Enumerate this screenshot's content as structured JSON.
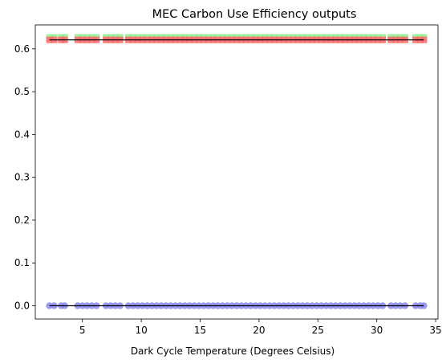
{
  "chart_data": {
    "type": "scatter",
    "title": "MEC Carbon Use Efficiency outputs",
    "xlabel": "Dark Cycle Temperature (Degrees Celsius)",
    "ylabel": "",
    "xlim": [
      1.0,
      35.2
    ],
    "ylim": [
      -0.031,
      0.656
    ],
    "xticks": [
      5,
      10,
      15,
      20,
      25,
      30,
      35
    ],
    "yticks": [
      0.0,
      0.1,
      0.2,
      0.3,
      0.4,
      0.5,
      0.6
    ],
    "grid": false,
    "x": [
      2.2,
      2.6,
      3.2,
      3.5,
      4.6,
      5.0,
      5.4,
      5.8,
      6.2,
      7.0,
      7.4,
      7.8,
      8.2,
      8.9,
      9.3,
      9.7,
      10.1,
      10.5,
      10.9,
      11.3,
      11.7,
      12.1,
      12.5,
      12.9,
      13.3,
      13.7,
      14.1,
      14.5,
      14.9,
      15.3,
      15.7,
      16.1,
      16.5,
      16.9,
      17.3,
      17.7,
      18.1,
      18.5,
      18.9,
      19.3,
      19.7,
      20.1,
      20.5,
      20.9,
      21.3,
      21.7,
      22.1,
      22.5,
      22.9,
      23.3,
      23.7,
      24.1,
      24.5,
      24.9,
      25.3,
      25.7,
      26.1,
      26.5,
      26.9,
      27.3,
      27.7,
      28.1,
      28.5,
      28.9,
      29.3,
      29.7,
      30.1,
      30.5,
      31.2,
      31.6,
      32.0,
      32.4,
      33.3,
      33.7,
      34.0
    ],
    "series": [
      {
        "color": "#90ee90",
        "marker": "square",
        "constant_y": 0.627
      },
      {
        "color": "#ff6666",
        "marker": "square",
        "constant_y": 0.621,
        "line": true
      },
      {
        "color": "#8888ee",
        "marker": "circle",
        "constant_y": 0.0,
        "line": true
      }
    ]
  }
}
